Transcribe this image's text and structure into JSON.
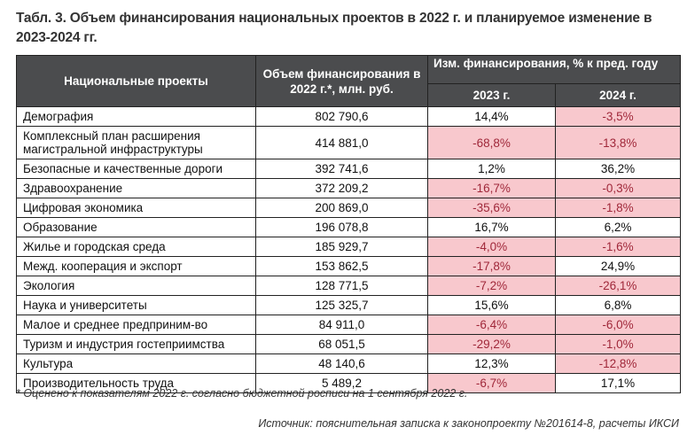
{
  "title": "Табл. 3. Объем финансирования национальных проектов в 2022 г. и планируемое изменение в 2023-2024 гг.",
  "table": {
    "headers": {
      "project": "Национальные проекты",
      "funding": "Объем финансирования в 2022 г.*, млн. руб.",
      "change_group": "Изм. финансирования, % к пред. году",
      "y2023": "2023 г.",
      "y2024": "2024 г."
    },
    "rows": [
      {
        "name": "Демография",
        "funding": "802 790,6",
        "c2023": "14,4%",
        "c2024": "-3,5%"
      },
      {
        "name": "Комплексный план расширения магистральной инфраструктуры",
        "funding": "414 881,0",
        "c2023": "-68,8%",
        "c2024": "-13,8%"
      },
      {
        "name": "Безопасные и качественные дороги",
        "funding": "392 741,6",
        "c2023": "1,2%",
        "c2024": "36,2%"
      },
      {
        "name": "Здравоохранение",
        "funding": "372 209,2",
        "c2023": "-16,7%",
        "c2024": "-0,3%"
      },
      {
        "name": "Цифровая экономика",
        "funding": "200 869,0",
        "c2023": "-35,6%",
        "c2024": "-1,8%"
      },
      {
        "name": "Образование",
        "funding": "196 078,8",
        "c2023": "16,7%",
        "c2024": "6,2%"
      },
      {
        "name": "Жилье и городская среда",
        "funding": "185 929,7",
        "c2023": "-4,0%",
        "c2024": "-1,6%"
      },
      {
        "name": "Межд. кооперация и экспорт",
        "funding": "153 862,5",
        "c2023": "-17,8%",
        "c2024": "24,9%"
      },
      {
        "name": "Экология",
        "funding": "128 771,5",
        "c2023": "-7,2%",
        "c2024": "-26,1%"
      },
      {
        "name": "Наука и университеты",
        "funding": "125 325,7",
        "c2023": "15,6%",
        "c2024": "6,8%"
      },
      {
        "name": "Малое и среднее предприним-во",
        "funding": "84 911,0",
        "c2023": "-6,4%",
        "c2024": "-6,0%"
      },
      {
        "name": "Туризм и индустрия гостеприимства",
        "funding": "68 051,5",
        "c2023": "-29,2%",
        "c2024": "-1,0%"
      },
      {
        "name": "Культура",
        "funding": "48 140,6",
        "c2023": "12,3%",
        "c2024": "-12,8%"
      },
      {
        "name": "Производительность труда",
        "funding": "5 489,2",
        "c2023": "-6,7%",
        "c2024": "17,1%"
      }
    ]
  },
  "colors": {
    "header_bg": "#4b4c4e",
    "negative_bg": "#f8c8cd",
    "negative_text": "#a0283a"
  },
  "footnote": "* Оценено к показателям 2022 г. согласно бюджетной росписи на 1 сентября 2022 г.",
  "source": "Источник: пояснительная записка к законопроекту №201614-8, расчеты ИКСИ"
}
